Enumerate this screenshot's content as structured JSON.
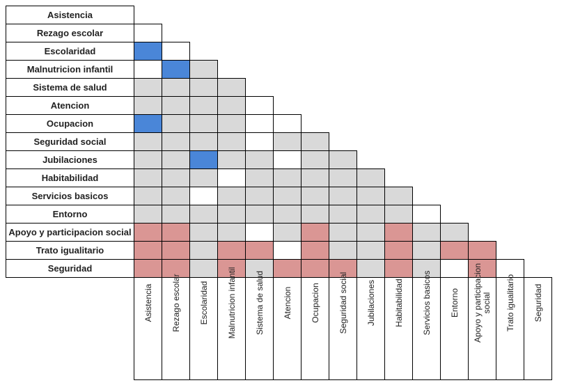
{
  "rows": [
    "Asistencia",
    "Rezago escolar",
    "Escolaridad",
    "Malnutricion infantil",
    "Sistema de salud",
    "Atencion",
    "Ocupacion",
    "Seguridad social",
    "Jubilaciones",
    "Habitabilidad",
    "Servicios basicos",
    "Entorno",
    "Apoyo y participacion social",
    "Trato igualitario",
    "Seguridad"
  ],
  "columns": [
    "Asistencia",
    "Rezago escolar",
    "Escolaridad",
    "Malnutricion infantil",
    "Sistema de salud",
    "Atencion",
    "Ocupacion",
    "Seguridad social",
    "Jubilaciones",
    "Habitabilidad",
    "Servicios basicos",
    "Entorno",
    "Apoyo y participacion social",
    "Trato igualitario",
    "Seguridad"
  ],
  "colors": {
    "W": "#ffffff",
    "G": "#d9d9d9",
    "B": "#4a86d8",
    "P": "#da9694"
  },
  "cells": [
    [],
    [
      "W"
    ],
    [
      "B",
      "W"
    ],
    [
      "W",
      "B",
      "G"
    ],
    [
      "G",
      "G",
      "G",
      "G"
    ],
    [
      "G",
      "G",
      "G",
      "G",
      "W"
    ],
    [
      "B",
      "G",
      "G",
      "G",
      "W",
      "W"
    ],
    [
      "G",
      "G",
      "G",
      "G",
      "W",
      "G",
      "G"
    ],
    [
      "G",
      "G",
      "B",
      "G",
      "G",
      "W",
      "G",
      "G"
    ],
    [
      "G",
      "G",
      "G",
      "W",
      "G",
      "G",
      "G",
      "G",
      "G"
    ],
    [
      "G",
      "G",
      "W",
      "G",
      "G",
      "G",
      "G",
      "G",
      "G",
      "G"
    ],
    [
      "G",
      "G",
      "G",
      "G",
      "G",
      "G",
      "G",
      "G",
      "G",
      "G",
      "W"
    ],
    [
      "P",
      "P",
      "G",
      "G",
      "W",
      "G",
      "P",
      "G",
      "G",
      "P",
      "G",
      "G"
    ],
    [
      "P",
      "P",
      "G",
      "P",
      "P",
      "W",
      "P",
      "G",
      "G",
      "P",
      "G",
      "P",
      "P"
    ],
    [
      "P",
      "P",
      "G",
      "P",
      "G",
      "P",
      "P",
      "P",
      "G",
      "P",
      "G",
      "W",
      "P",
      "W"
    ]
  ]
}
